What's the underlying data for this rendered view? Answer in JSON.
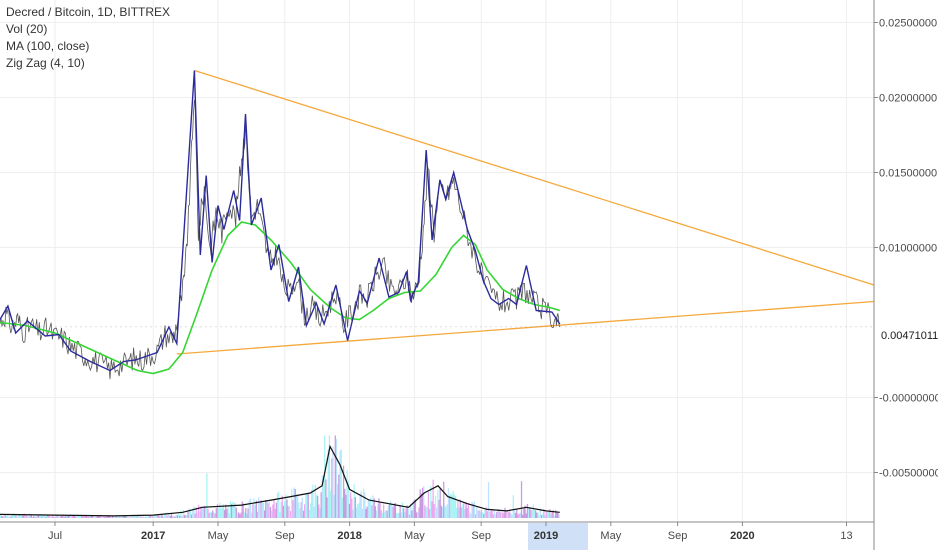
{
  "legend": {
    "title": "Decred / Bitcoin, 1D, BITTREX",
    "vol": "Vol (20)",
    "ma": "MA (100, close)",
    "zigzag": "Zig Zag (4, 10)"
  },
  "last_price_label": "0.00471011",
  "colors": {
    "price": "#555555",
    "zigzag": "#2b2b9c",
    "ma": "#33d633",
    "trendline": "#f5a83c",
    "grid": "#eeeeee",
    "vol_line": "#111111",
    "highlight": "#cfe0f7"
  },
  "chart_data": {
    "type": "line",
    "title": "Decred / Bitcoin, 1D, BITTREX",
    "x_ticks": [
      {
        "label": "Jul",
        "t": 2016.5,
        "bold": false
      },
      {
        "label": "2017",
        "t": 2017.0,
        "bold": true
      },
      {
        "label": "May",
        "t": 2017.33,
        "bold": false
      },
      {
        "label": "Sep",
        "t": 2017.67,
        "bold": false
      },
      {
        "label": "2018",
        "t": 2018.0,
        "bold": true
      },
      {
        "label": "May",
        "t": 2018.33,
        "bold": false
      },
      {
        "label": "Sep",
        "t": 2018.67,
        "bold": false
      },
      {
        "label": "2019",
        "t": 2019.0,
        "bold": true,
        "highlight": true
      },
      {
        "label": "May",
        "t": 2019.33,
        "bold": false
      },
      {
        "label": "Sep",
        "t": 2019.67,
        "bold": false
      },
      {
        "label": "2020",
        "t": 2020.0,
        "bold": true
      },
      {
        "label": "13",
        "t": 2020.53,
        "bold": false
      }
    ],
    "y_ticks": [
      "0.02500000",
      "0.02000000",
      "0.01500000",
      "0.01000000",
      "-0.00000000",
      "-0.00500000"
    ],
    "y_tick_values": [
      0.025,
      0.02,
      0.015,
      0.01,
      0.0,
      -0.005
    ],
    "ylim": [
      -0.0083,
      0.0265
    ],
    "xlim": [
      2016.22,
      2020.67
    ],
    "last_price": 0.00471011,
    "zigzag": [
      [
        2016.22,
        0.0052
      ],
      [
        2016.26,
        0.0061
      ],
      [
        2016.3,
        0.0043
      ],
      [
        2016.36,
        0.0051
      ],
      [
        2016.45,
        0.0041
      ],
      [
        2016.52,
        0.0042
      ],
      [
        2016.58,
        0.0031
      ],
      [
        2016.68,
        0.0024
      ],
      [
        2016.78,
        0.0018
      ],
      [
        2016.85,
        0.0024
      ],
      [
        2016.91,
        0.0025
      ],
      [
        2017.02,
        0.003
      ],
      [
        2017.08,
        0.0047
      ],
      [
        2017.12,
        0.0036
      ],
      [
        2017.21,
        0.0218
      ],
      [
        2017.24,
        0.0095
      ],
      [
        2017.27,
        0.0148
      ],
      [
        2017.3,
        0.009
      ],
      [
        2017.33,
        0.0128
      ],
      [
        2017.36,
        0.0112
      ],
      [
        2017.41,
        0.0138
      ],
      [
        2017.44,
        0.0118
      ],
      [
        2017.47,
        0.0189
      ],
      [
        2017.5,
        0.0115
      ],
      [
        2017.55,
        0.0133
      ],
      [
        2017.6,
        0.0085
      ],
      [
        2017.64,
        0.0102
      ],
      [
        2017.69,
        0.0064
      ],
      [
        2017.74,
        0.0087
      ],
      [
        2017.78,
        0.0048
      ],
      [
        2017.83,
        0.0063
      ],
      [
        2017.87,
        0.0049
      ],
      [
        2017.93,
        0.0075
      ],
      [
        2017.99,
        0.0038
      ],
      [
        2018.05,
        0.0071
      ],
      [
        2018.09,
        0.0063
      ],
      [
        2018.15,
        0.0093
      ],
      [
        2018.2,
        0.0067
      ],
      [
        2018.25,
        0.007
      ],
      [
        2018.29,
        0.0084
      ],
      [
        2018.31,
        0.0065
      ],
      [
        2018.35,
        0.0077
      ],
      [
        2018.39,
        0.0165
      ],
      [
        2018.42,
        0.0105
      ],
      [
        2018.46,
        0.0145
      ],
      [
        2018.49,
        0.0132
      ],
      [
        2018.53,
        0.015
      ],
      [
        2018.6,
        0.0112
      ],
      [
        2018.64,
        0.0098
      ],
      [
        2018.68,
        0.0078
      ],
      [
        2018.72,
        0.0066
      ],
      [
        2018.76,
        0.0062
      ],
      [
        2018.81,
        0.0066
      ],
      [
        2018.85,
        0.0062
      ],
      [
        2018.9,
        0.0088
      ],
      [
        2018.95,
        0.0058
      ],
      [
        2019.03,
        0.0057
      ],
      [
        2019.07,
        0.0049
      ]
    ],
    "price": [
      [
        2016.22,
        0.005
      ],
      [
        2016.25,
        0.0056
      ],
      [
        2016.28,
        0.0047
      ],
      [
        2016.31,
        0.0052
      ],
      [
        2016.34,
        0.0044
      ],
      [
        2016.38,
        0.0048
      ],
      [
        2016.42,
        0.0043
      ],
      [
        2016.46,
        0.0046
      ],
      [
        2016.5,
        0.0041
      ],
      [
        2016.54,
        0.004
      ],
      [
        2016.58,
        0.0034
      ],
      [
        2016.62,
        0.0031
      ],
      [
        2016.66,
        0.0027
      ],
      [
        2016.7,
        0.0025
      ],
      [
        2016.74,
        0.0022
      ],
      [
        2016.78,
        0.0019
      ],
      [
        2016.82,
        0.0022
      ],
      [
        2016.86,
        0.0023
      ],
      [
        2016.9,
        0.0026
      ],
      [
        2016.94,
        0.0025
      ],
      [
        2016.98,
        0.0028
      ],
      [
        2017.02,
        0.0031
      ],
      [
        2017.06,
        0.0042
      ],
      [
        2017.1,
        0.0039
      ],
      [
        2017.13,
        0.0055
      ],
      [
        2017.16,
        0.008
      ],
      [
        2017.18,
        0.012
      ],
      [
        2017.21,
        0.0205
      ],
      [
        2017.23,
        0.011
      ],
      [
        2017.26,
        0.014
      ],
      [
        2017.29,
        0.0098
      ],
      [
        2017.32,
        0.0124
      ],
      [
        2017.35,
        0.011
      ],
      [
        2017.38,
        0.013
      ],
      [
        2017.42,
        0.012
      ],
      [
        2017.45,
        0.016
      ],
      [
        2017.47,
        0.018
      ],
      [
        2017.5,
        0.012
      ],
      [
        2017.53,
        0.0128
      ],
      [
        2017.56,
        0.011
      ],
      [
        2017.59,
        0.009
      ],
      [
        2017.63,
        0.0096
      ],
      [
        2017.66,
        0.0075
      ],
      [
        2017.7,
        0.007
      ],
      [
        2017.73,
        0.0082
      ],
      [
        2017.77,
        0.0055
      ],
      [
        2017.81,
        0.006
      ],
      [
        2017.85,
        0.0052
      ],
      [
        2017.89,
        0.006
      ],
      [
        2017.93,
        0.007
      ],
      [
        2017.97,
        0.0048
      ],
      [
        2018.01,
        0.0058
      ],
      [
        2018.05,
        0.0068
      ],
      [
        2018.09,
        0.0066
      ],
      [
        2018.13,
        0.008
      ],
      [
        2018.17,
        0.0088
      ],
      [
        2018.21,
        0.0072
      ],
      [
        2018.25,
        0.0071
      ],
      [
        2018.29,
        0.008
      ],
      [
        2018.32,
        0.0068
      ],
      [
        2018.35,
        0.0076
      ],
      [
        2018.38,
        0.012
      ],
      [
        2018.4,
        0.0155
      ],
      [
        2018.43,
        0.011
      ],
      [
        2018.46,
        0.014
      ],
      [
        2018.5,
        0.0135
      ],
      [
        2018.53,
        0.0145
      ],
      [
        2018.57,
        0.0125
      ],
      [
        2018.61,
        0.0105
      ],
      [
        2018.65,
        0.009
      ],
      [
        2018.69,
        0.0075
      ],
      [
        2018.73,
        0.0068
      ],
      [
        2018.77,
        0.0063
      ],
      [
        2018.81,
        0.0064
      ],
      [
        2018.85,
        0.0065
      ],
      [
        2018.89,
        0.0072
      ],
      [
        2018.93,
        0.0065
      ],
      [
        2018.97,
        0.006
      ],
      [
        2019.01,
        0.0056
      ],
      [
        2019.05,
        0.0052
      ],
      [
        2019.07,
        0.0047
      ]
    ],
    "ma": [
      [
        2016.22,
        0.005
      ],
      [
        2016.35,
        0.0048
      ],
      [
        2016.5,
        0.0043
      ],
      [
        2016.65,
        0.0034
      ],
      [
        2016.8,
        0.0025
      ],
      [
        2016.92,
        0.0018
      ],
      [
        2017.0,
        0.0016
      ],
      [
        2017.08,
        0.0019
      ],
      [
        2017.15,
        0.003
      ],
      [
        2017.22,
        0.0055
      ],
      [
        2017.3,
        0.0085
      ],
      [
        2017.38,
        0.0108
      ],
      [
        2017.45,
        0.0117
      ],
      [
        2017.52,
        0.0115
      ],
      [
        2017.6,
        0.0105
      ],
      [
        2017.7,
        0.009
      ],
      [
        2017.8,
        0.0072
      ],
      [
        2017.9,
        0.006
      ],
      [
        2017.98,
        0.0053
      ],
      [
        2018.05,
        0.0052
      ],
      [
        2018.12,
        0.0058
      ],
      [
        2018.2,
        0.0066
      ],
      [
        2018.28,
        0.007
      ],
      [
        2018.36,
        0.0071
      ],
      [
        2018.44,
        0.0082
      ],
      [
        2018.52,
        0.01
      ],
      [
        2018.58,
        0.0108
      ],
      [
        2018.64,
        0.0102
      ],
      [
        2018.7,
        0.0085
      ],
      [
        2018.78,
        0.0072
      ],
      [
        2018.86,
        0.0066
      ],
      [
        2018.94,
        0.0062
      ],
      [
        2019.02,
        0.006
      ],
      [
        2019.07,
        0.0058
      ]
    ],
    "trendlines": [
      {
        "from": [
          2017.21,
          0.0218
        ],
        "to": [
          2020.67,
          0.0075
        ]
      },
      {
        "from": [
          2017.12,
          0.0029
        ],
        "to": [
          2020.67,
          0.0064
        ]
      }
    ],
    "volume_line": [
      [
        2016.22,
        0.05
      ],
      [
        2016.5,
        0.04
      ],
      [
        2016.8,
        0.03
      ],
      [
        2017.0,
        0.04
      ],
      [
        2017.15,
        0.08
      ],
      [
        2017.25,
        0.15
      ],
      [
        2017.45,
        0.18
      ],
      [
        2017.6,
        0.25
      ],
      [
        2017.7,
        0.3
      ],
      [
        2017.8,
        0.35
      ],
      [
        2017.86,
        0.45
      ],
      [
        2017.9,
        1.0
      ],
      [
        2017.95,
        0.75
      ],
      [
        2018.0,
        0.4
      ],
      [
        2018.1,
        0.25
      ],
      [
        2018.2,
        0.2
      ],
      [
        2018.3,
        0.15
      ],
      [
        2018.38,
        0.35
      ],
      [
        2018.45,
        0.45
      ],
      [
        2018.5,
        0.3
      ],
      [
        2018.6,
        0.2
      ],
      [
        2018.7,
        0.12
      ],
      [
        2018.8,
        0.1
      ],
      [
        2018.9,
        0.15
      ],
      [
        2019.0,
        0.1
      ],
      [
        2019.07,
        0.08
      ]
    ]
  }
}
